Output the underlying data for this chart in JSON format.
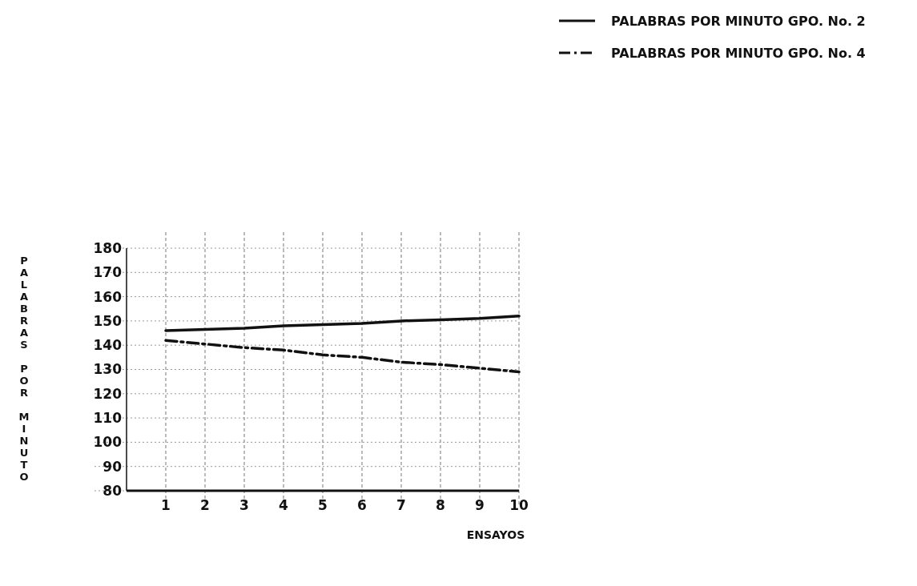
{
  "chart_data": {
    "type": "line",
    "xlabel": "ENSAYOS",
    "ylabel": "PALABRAS POR MINUTO",
    "x": [
      1,
      2,
      3,
      4,
      5,
      6,
      7,
      8,
      9,
      10
    ],
    "series": [
      {
        "name": "PALABRAS POR MINUTO GPO. No. 2",
        "color": "#111111",
        "line_style": "solid",
        "values": [
          146,
          146.5,
          147,
          148,
          148.5,
          149,
          150,
          150.5,
          151,
          152
        ]
      },
      {
        "name": "PALABRAS POR MINUTO GPO. No. 4",
        "color": "#111111",
        "line_style": "dashdot",
        "values": [
          142,
          140.5,
          139,
          138,
          136,
          135,
          133,
          132,
          130.5,
          129
        ]
      }
    ],
    "xlim": [
      0,
      10
    ],
    "xticks": [
      1,
      2,
      3,
      4,
      5,
      6,
      7,
      8,
      9,
      10
    ],
    "ylim": [
      80,
      180
    ],
    "yticks": [
      80,
      90,
      100,
      110,
      120,
      130,
      140,
      150,
      160,
      170,
      180
    ],
    "grid": true,
    "legend": "top right",
    "marker": "none"
  }
}
